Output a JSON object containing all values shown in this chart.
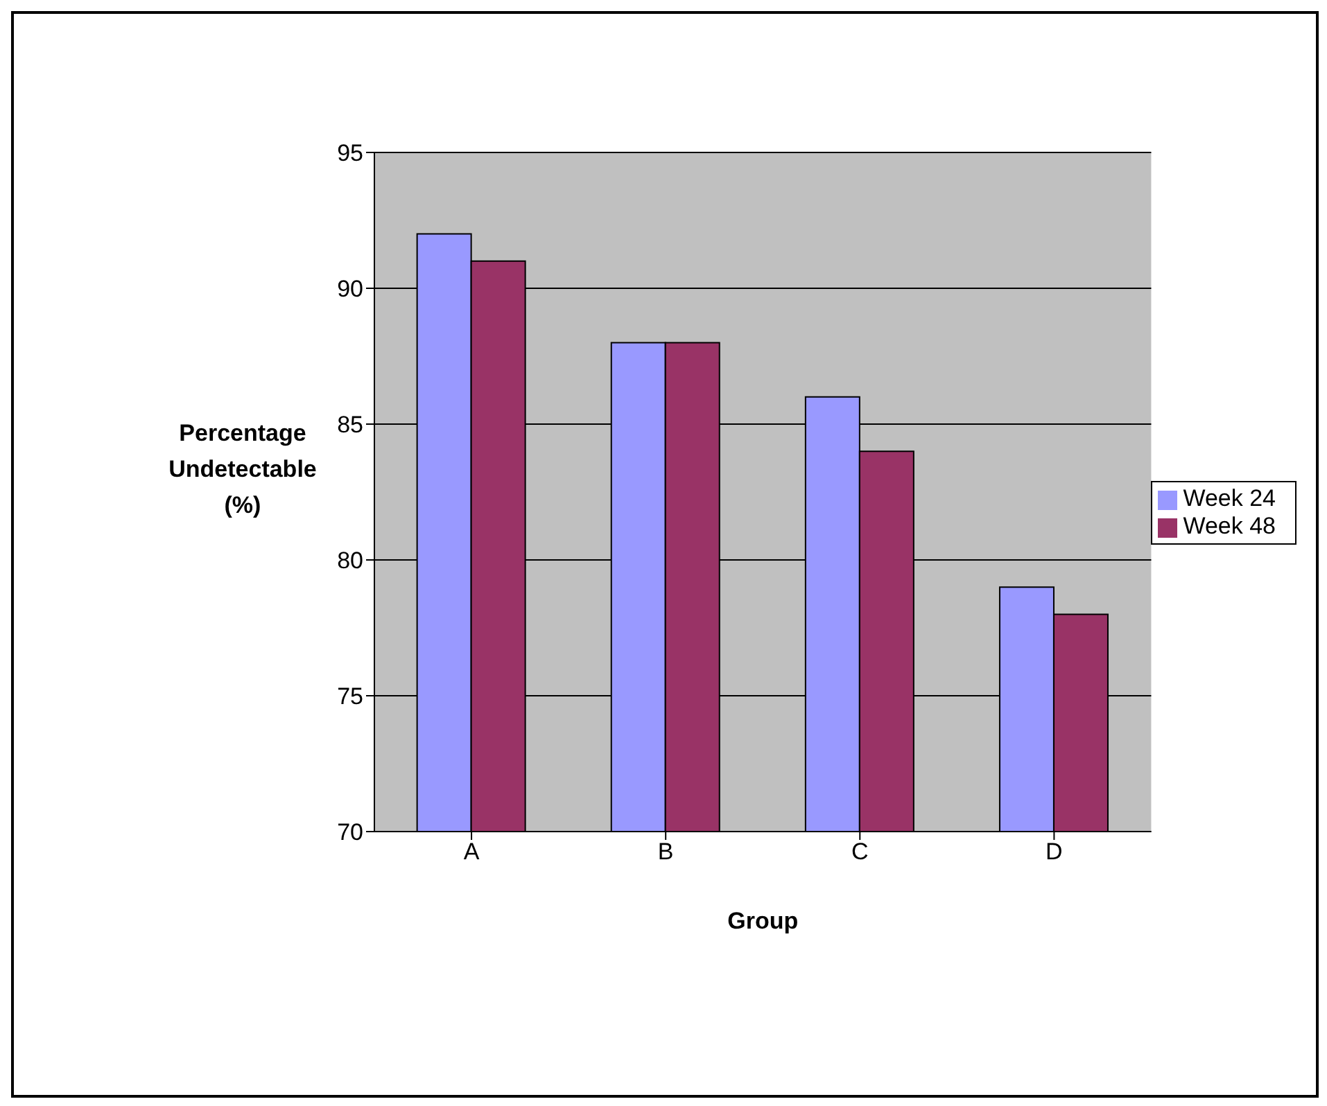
{
  "chart_data": {
    "type": "bar",
    "categories": [
      "A",
      "B",
      "C",
      "D"
    ],
    "series": [
      {
        "name": "Week 24",
        "color": "#9999ff",
        "values": [
          92,
          88,
          86,
          79
        ]
      },
      {
        "name": "Week 48",
        "color": "#993366",
        "values": [
          91,
          88,
          84,
          78
        ]
      }
    ],
    "xlabel": "Group",
    "ylabel": "Percentage Undetectable (%)",
    "ylim": [
      70,
      95
    ],
    "yticks": [
      70,
      75,
      80,
      85,
      90,
      95
    ],
    "grid": "y",
    "legend": "right"
  }
}
